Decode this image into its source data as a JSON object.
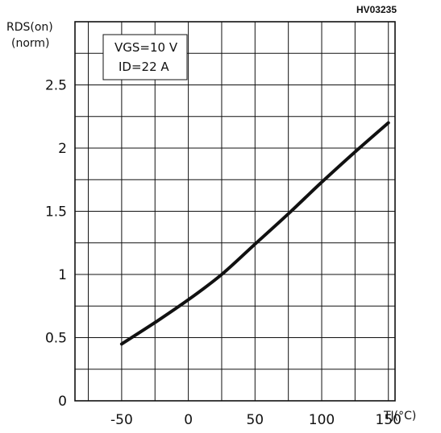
{
  "figure": {
    "code": "HV03235"
  },
  "chart_data": {
    "type": "line",
    "ylabel_line1": "RDS(on)",
    "ylabel_line2": "(norm)",
    "xlabel": "TJ(°C)",
    "xlim": [
      -85,
      155
    ],
    "ylim": [
      0,
      3.0
    ],
    "x_grid_step": 25,
    "y_grid_step": 0.25,
    "x_ticks": [
      -50,
      0,
      50,
      100,
      150
    ],
    "x_tick_labels": [
      "-50",
      "0",
      "50",
      "100",
      "150"
    ],
    "y_ticks": [
      0,
      0.5,
      1,
      1.5,
      2,
      2.5
    ],
    "y_tick_labels": [
      "0",
      "0.5",
      "1",
      "1.5",
      "2",
      "2.5"
    ],
    "grid": true,
    "annotation": {
      "line1": "VGS=10 V",
      "line2": "ID=22 A"
    },
    "series": [
      {
        "x": [
          -50,
          -25,
          0,
          25,
          50,
          75,
          100,
          125,
          150
        ],
        "y": [
          0.45,
          0.62,
          0.8,
          1.0,
          1.24,
          1.48,
          1.73,
          1.97,
          2.2
        ]
      }
    ]
  }
}
